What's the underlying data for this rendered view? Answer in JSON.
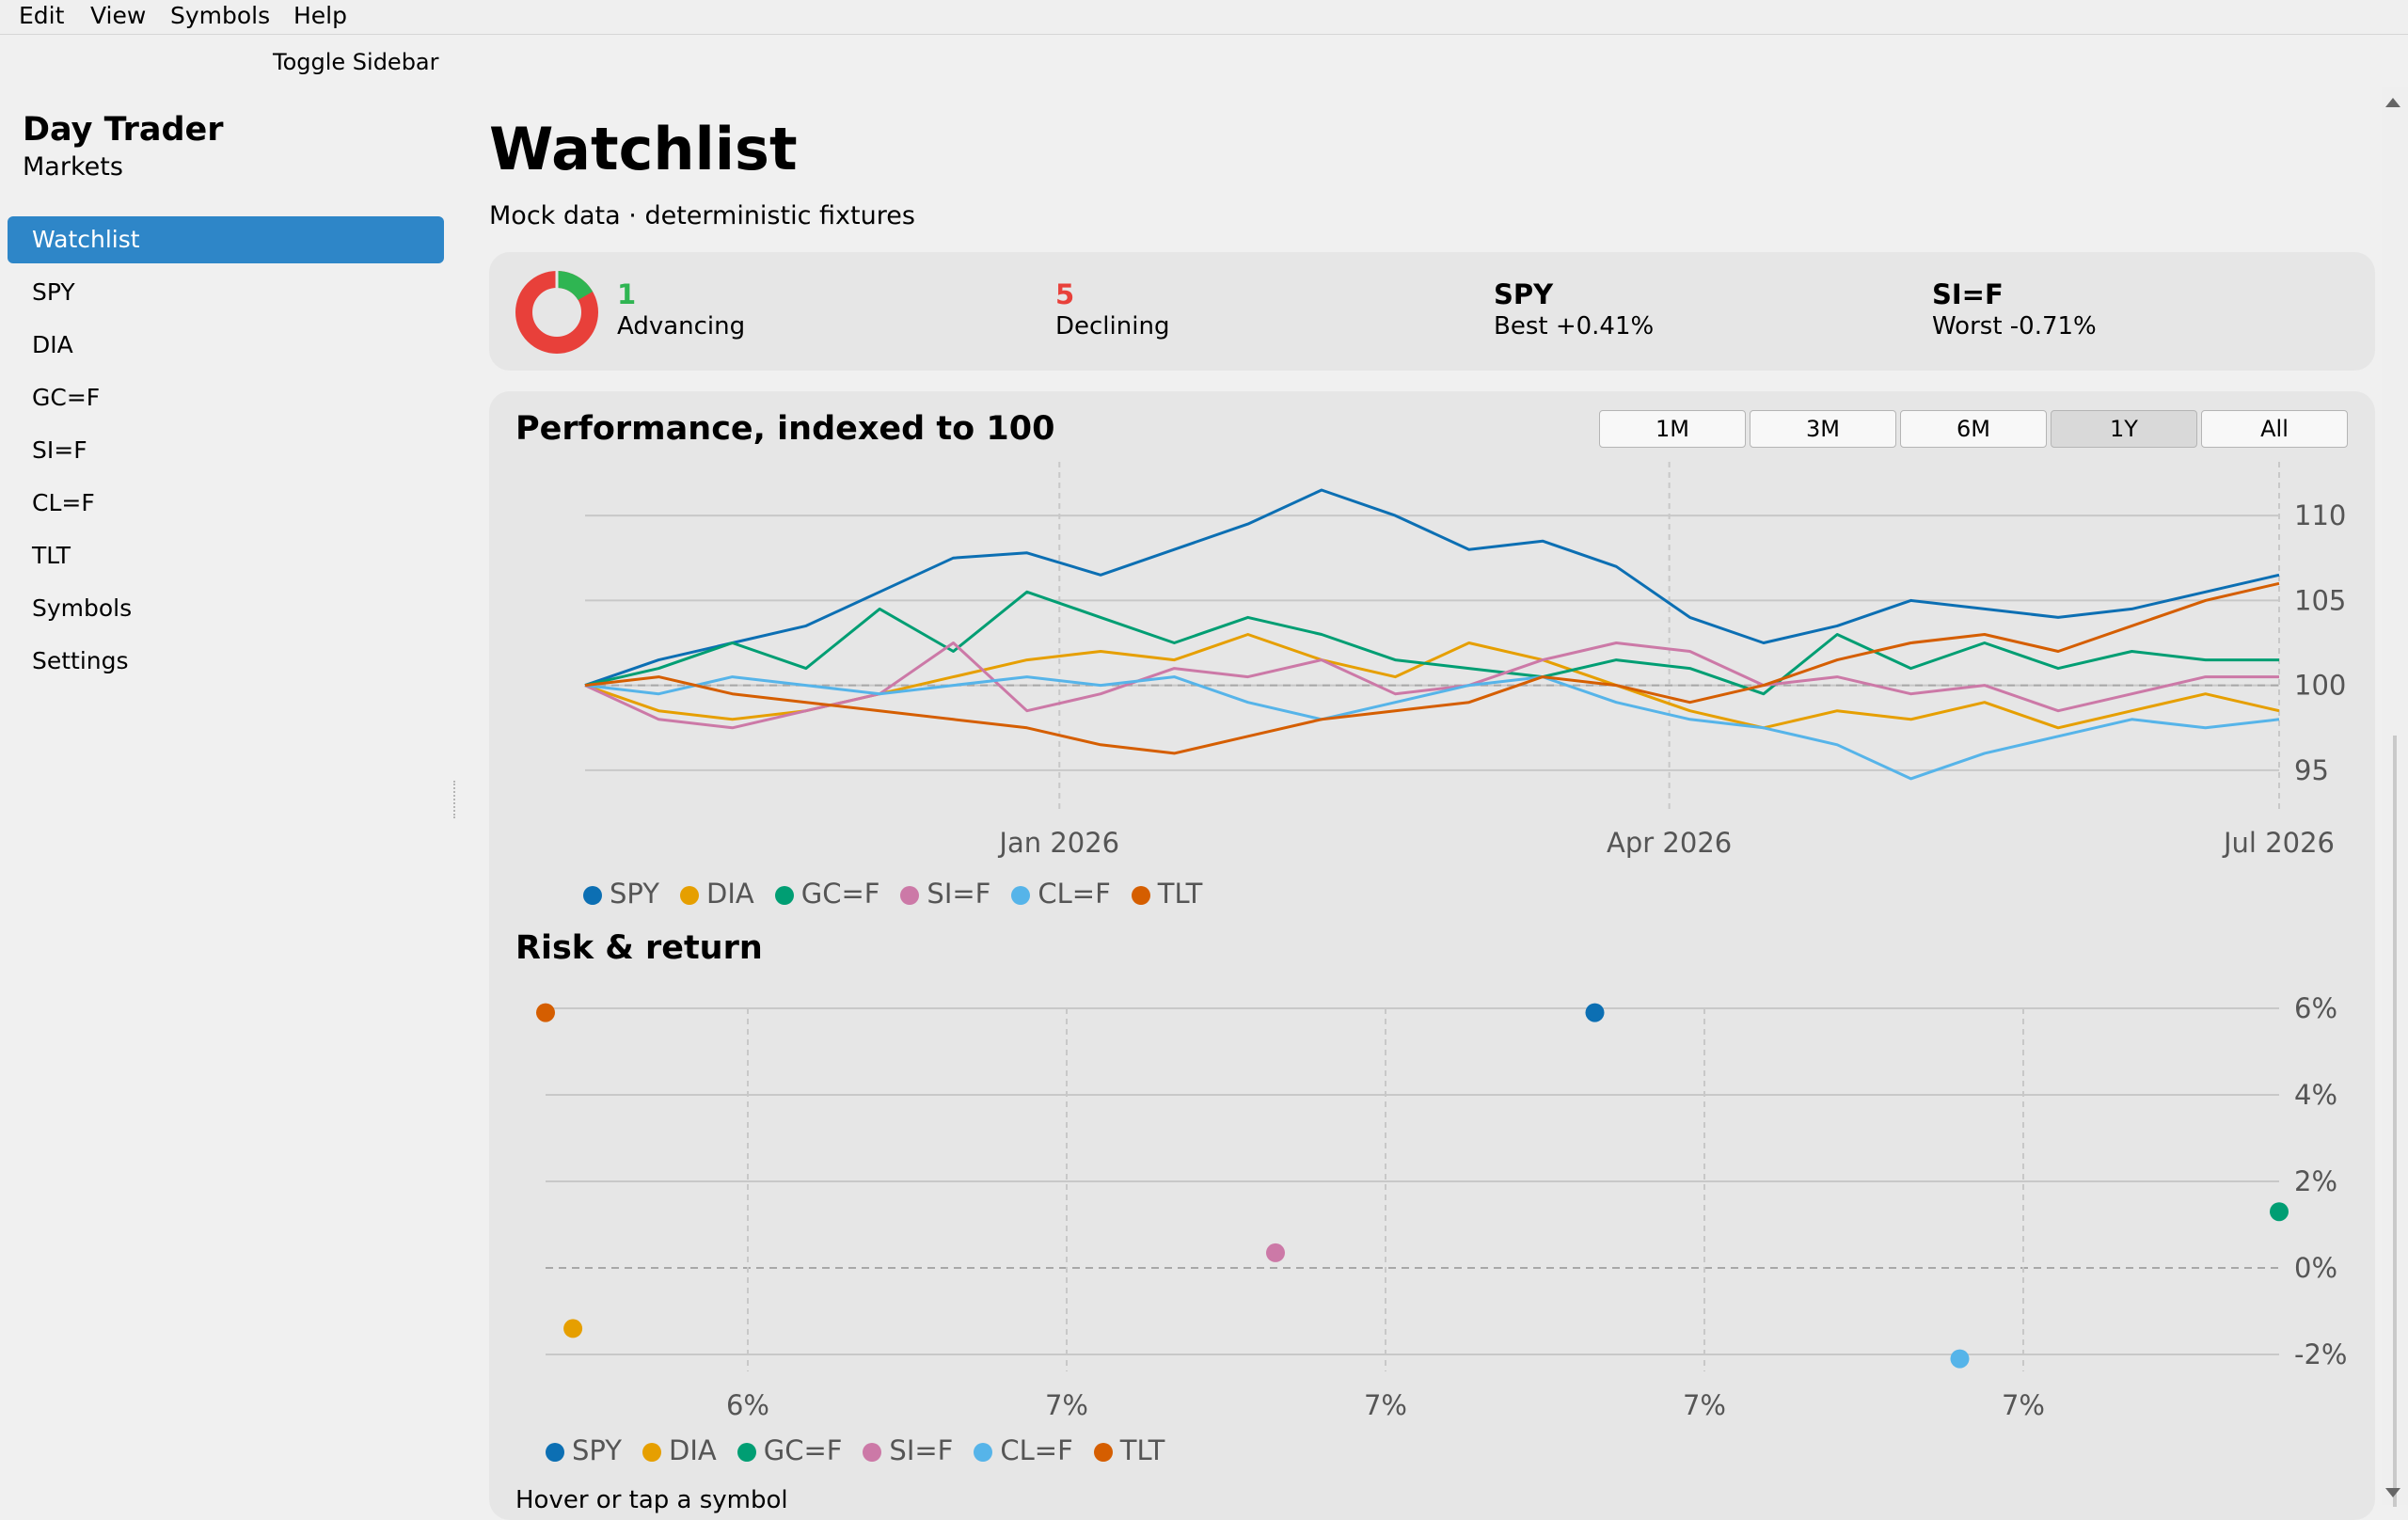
{
  "menu": [
    "Edit",
    "View",
    "Symbols",
    "Help"
  ],
  "toggle_sidebar": "Toggle Sidebar",
  "app": {
    "title": "Day Trader",
    "subtitle": "Markets"
  },
  "sidebar": {
    "items": [
      {
        "label": "Watchlist",
        "active": true
      },
      {
        "label": "SPY"
      },
      {
        "label": "DIA"
      },
      {
        "label": "GC=F"
      },
      {
        "label": "SI=F"
      },
      {
        "label": "CL=F"
      },
      {
        "label": "TLT"
      },
      {
        "label": "Symbols"
      },
      {
        "label": "Settings"
      }
    ]
  },
  "page": {
    "title": "Watchlist",
    "subtitle": "Mock data · deterministic fixtures"
  },
  "summary": {
    "advancing_count": "1",
    "advancing_label": "Advancing",
    "declining_count": "5",
    "declining_label": "Declining",
    "best_symbol": "SPY",
    "best_label": "Best +0.41%",
    "worst_symbol": "SI=F",
    "worst_label": "Worst -0.71%",
    "colors": {
      "advancing": "#2fb552",
      "declining": "#e8403a"
    }
  },
  "performance": {
    "title": "Performance, indexed to 100",
    "ranges": [
      "1M",
      "3M",
      "6M",
      "1Y",
      "All"
    ],
    "selected_range": "1Y"
  },
  "risk": {
    "title": "Risk & return"
  },
  "hover_hint": "Hover or tap a symbol",
  "colors": {
    "SPY": "#0c6fb3",
    "DIA": "#e69f00",
    "GC=F": "#009e73",
    "SI=F": "#cc79a7",
    "CL=F": "#56b4e9",
    "TLT": "#d55e00"
  },
  "chart_data": [
    {
      "type": "line",
      "title": "Performance, indexed to 100",
      "x_ticks": [
        "Jan 2026",
        "Apr 2026",
        "Jul 2026"
      ],
      "x_tick_index": [
        28,
        64,
        100
      ],
      "y_ticks": [
        95,
        100,
        105,
        110
      ],
      "ylim": [
        93.5,
        111.5
      ],
      "baseline": 100,
      "grid": true,
      "legend_position": "bottom",
      "series": [
        {
          "name": "SPY",
          "values": [
            100,
            101.5,
            102.5,
            103.5,
            105.5,
            107.5,
            107.8,
            106.5,
            108,
            109.5,
            111.5,
            110,
            108,
            108.5,
            107,
            104,
            102.5,
            103.5,
            105,
            104.5,
            104,
            104.5,
            105.5,
            106.5
          ]
        },
        {
          "name": "DIA",
          "values": [
            100,
            98.5,
            98,
            98.5,
            99.5,
            100.5,
            101.5,
            102,
            101.5,
            103,
            101.5,
            100.5,
            102.5,
            101.5,
            100,
            98.5,
            97.5,
            98.5,
            98,
            99,
            97.5,
            98.5,
            99.5,
            98.5
          ]
        },
        {
          "name": "GC=F",
          "values": [
            100,
            101,
            102.5,
            101,
            104.5,
            102,
            105.5,
            104,
            102.5,
            104,
            103,
            101.5,
            101,
            100.5,
            101.5,
            101,
            99.5,
            103,
            101,
            102.5,
            101,
            102,
            101.5,
            101.5
          ]
        },
        {
          "name": "SI=F",
          "values": [
            100,
            98,
            97.5,
            98.5,
            99.5,
            102.5,
            98.5,
            99.5,
            101,
            100.5,
            101.5,
            99.5,
            100,
            101.5,
            102.5,
            102,
            100,
            100.5,
            99.5,
            100,
            98.5,
            99.5,
            100.5,
            100.5
          ]
        },
        {
          "name": "CL=F",
          "values": [
            100,
            99.5,
            100.5,
            100,
            99.5,
            100,
            100.5,
            100,
            100.5,
            99,
            98,
            99,
            100,
            100.5,
            99,
            98,
            97.5,
            96.5,
            94.5,
            96,
            97,
            98,
            97.5,
            98
          ]
        },
        {
          "name": "TLT",
          "values": [
            100,
            100.5,
            99.5,
            99,
            98.5,
            98,
            97.5,
            96.5,
            96,
            97,
            98,
            98.5,
            99,
            100.5,
            100,
            99,
            100,
            101.5,
            102.5,
            103,
            102,
            103.5,
            105,
            106
          ]
        }
      ]
    },
    {
      "type": "scatter",
      "title": "Risk & return",
      "x_ticks": [
        "6%",
        "7%",
        "7%",
        "7%",
        "7%"
      ],
      "y_ticks": [
        "6%",
        "4%",
        "2%",
        "0%",
        "-2%"
      ],
      "xlim": [
        5.8,
        7.7
      ],
      "ylim": [
        -2.0,
        6.0
      ],
      "baseline": 0,
      "grid": true,
      "legend_position": "bottom",
      "points": [
        {
          "name": "SPY",
          "x": 6.95,
          "y": 5.9
        },
        {
          "name": "DIA",
          "x": 5.83,
          "y": -1.4
        },
        {
          "name": "GC=F",
          "x": 7.7,
          "y": 1.3
        },
        {
          "name": "SI=F",
          "x": 6.6,
          "y": 0.35
        },
        {
          "name": "CL=F",
          "x": 7.35,
          "y": -2.1
        },
        {
          "name": "TLT",
          "x": 5.8,
          "y": 5.9
        }
      ]
    }
  ]
}
